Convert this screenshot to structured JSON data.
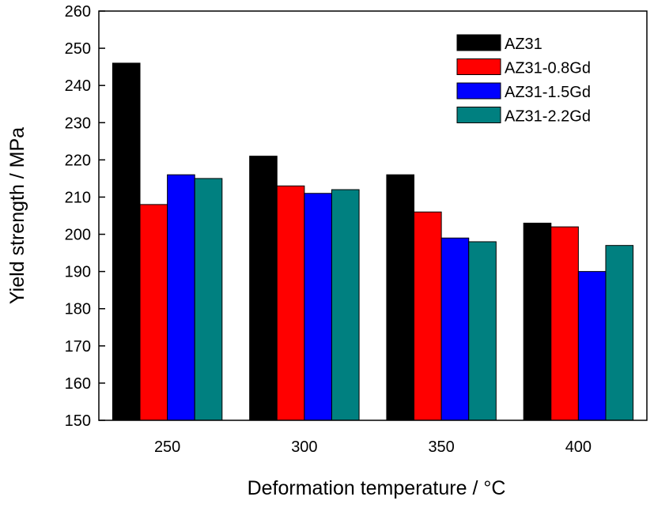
{
  "chart_data": {
    "type": "bar",
    "title": "",
    "xlabel": "Deformation temperature / °C",
    "ylabel": "Yield strength / MPa",
    "categories": [
      "250",
      "300",
      "350",
      "400"
    ],
    "series": [
      {
        "name": "AZ31",
        "values": [
          246,
          221,
          216,
          203
        ],
        "color": "#000000"
      },
      {
        "name": "AZ31-0.8Gd",
        "values": [
          208,
          213,
          206,
          202
        ],
        "color": "#ff0000"
      },
      {
        "name": "AZ31-1.5Gd",
        "values": [
          216,
          211,
          199,
          190
        ],
        "color": "#0000ff"
      },
      {
        "name": "AZ31-2.2Gd",
        "values": [
          215,
          212,
          198,
          197
        ],
        "color": "#008080"
      }
    ],
    "ylim": [
      150,
      260
    ],
    "yticks": [
      150,
      160,
      170,
      180,
      190,
      200,
      210,
      220,
      230,
      240,
      250,
      260
    ],
    "grid": false,
    "legend_position": "top-right"
  }
}
